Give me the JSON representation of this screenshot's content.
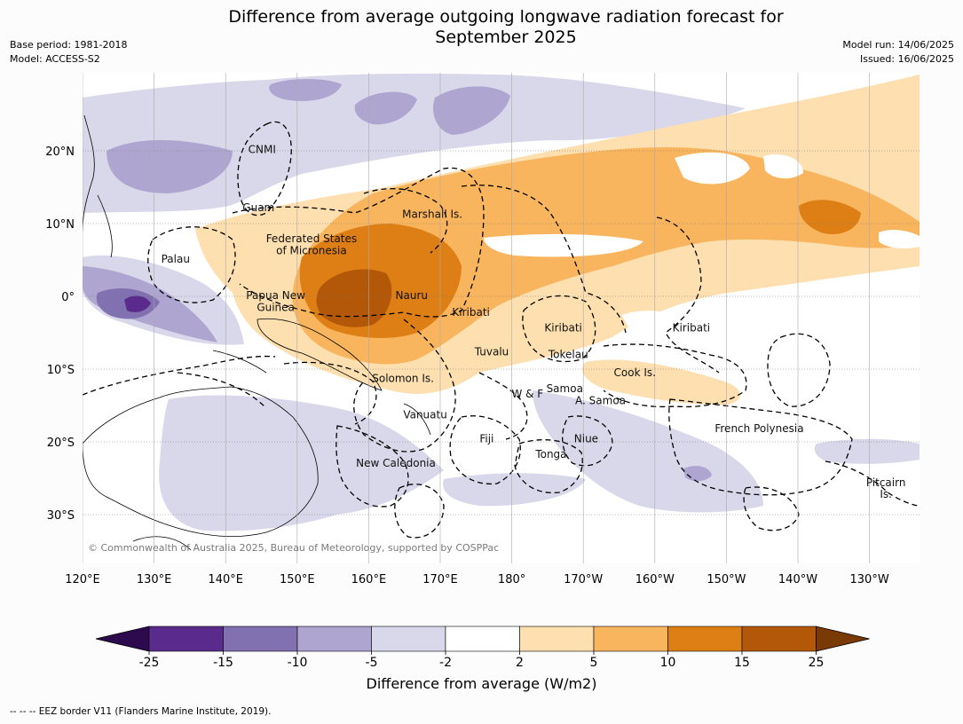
{
  "title_line1": "Difference from average outgoing longwave radiation forecast for",
  "title_line2": "September 2025",
  "meta_left": [
    "Base period: 1981-2018",
    "Model: ACCESS-S2"
  ],
  "meta_right": [
    "Model run: 14/06/2025",
    "Issued: 16/06/2025"
  ],
  "lon_labels": [
    "120°E",
    "130°E",
    "140°E",
    "150°E",
    "160°E",
    "170°E",
    "180°",
    "170°W",
    "160°W",
    "150°W",
    "140°W",
    "130°W"
  ],
  "lat_labels": [
    "20°N",
    "10°N",
    "0°",
    "10°S",
    "20°S",
    "30°S"
  ],
  "region_labels": [
    {
      "text": "CNMI",
      "lon": 145.1,
      "lat": 20.2
    },
    {
      "text": "Guam",
      "lon": 144.6,
      "lat": 12.2
    },
    {
      "text": "Marshall Is.",
      "lon": 168.9,
      "lat": 11.3
    },
    {
      "text": "Federated States",
      "lon": 152.0,
      "lat": 7.9
    },
    {
      "text": "of Micronesia",
      "lon": 152.0,
      "lat": 6.3
    },
    {
      "text": "Palau",
      "lon": 133.0,
      "lat": 5.1
    },
    {
      "text": "Papua New",
      "lon": 147.0,
      "lat": 0.1
    },
    {
      "text": "Guinea",
      "lon": 147.0,
      "lat": -1.5
    },
    {
      "text": "Nauru",
      "lon": 166.0,
      "lat": 0.1
    },
    {
      "text": "Kiribati",
      "lon": 174.3,
      "lat": -2.2
    },
    {
      "text": "Kiribati",
      "lon": -172.8,
      "lat": -4.3
    },
    {
      "text": "Kiribati",
      "lon": -154.9,
      "lat": -4.3
    },
    {
      "text": "Tuvalu",
      "lon": 177.2,
      "lat": -7.6
    },
    {
      "text": "Tokelau",
      "lon": -172.1,
      "lat": -8.0
    },
    {
      "text": "Cook Is.",
      "lon": -162.8,
      "lat": -10.5
    },
    {
      "text": "Solomon Is.",
      "lon": 164.8,
      "lat": -11.3
    },
    {
      "text": "Samoa",
      "lon": -172.6,
      "lat": -12.7
    },
    {
      "text": "W & F",
      "lon": -177.8,
      "lat": -13.4
    },
    {
      "text": "A. Samoa",
      "lon": -167.6,
      "lat": -14.3
    },
    {
      "text": "Vanuatu",
      "lon": 167.9,
      "lat": -16.3
    },
    {
      "text": "French Polynesia",
      "lon": -145.4,
      "lat": -18.2
    },
    {
      "text": "Fiji",
      "lon": 176.5,
      "lat": -19.6
    },
    {
      "text": "Niue",
      "lon": -169.6,
      "lat": -19.6
    },
    {
      "text": "Tonga",
      "lon": -174.5,
      "lat": -21.7
    },
    {
      "text": "New Caledonia",
      "lon": 163.8,
      "lat": -22.9
    },
    {
      "text": "Pitcairn",
      "lon": -127.7,
      "lat": -25.6
    },
    {
      "text": "Is.",
      "lon": -127.7,
      "lat": -27.2
    }
  ],
  "copyright": "© Commonwealth of Australia 2025, Bureau of Meteorology, supported by COSPPac",
  "colorbar": {
    "ticks": [
      "-25",
      "-15",
      "-10",
      "-5",
      "-2",
      "2",
      "5",
      "10",
      "15",
      "25"
    ],
    "colors": [
      "#2d0a4e",
      "#5a2a8c",
      "#8171b0",
      "#aea6d1",
      "#d9d8ea",
      "#ffffff",
      "#fddfb0",
      "#f9b45e",
      "#de7f16",
      "#b25808",
      "#7a3a06"
    ],
    "label": "Difference from average (W/m2)"
  },
  "footnote": "--  --  -- EEZ border V11 (Flanders Marine Institute, 2019)."
}
